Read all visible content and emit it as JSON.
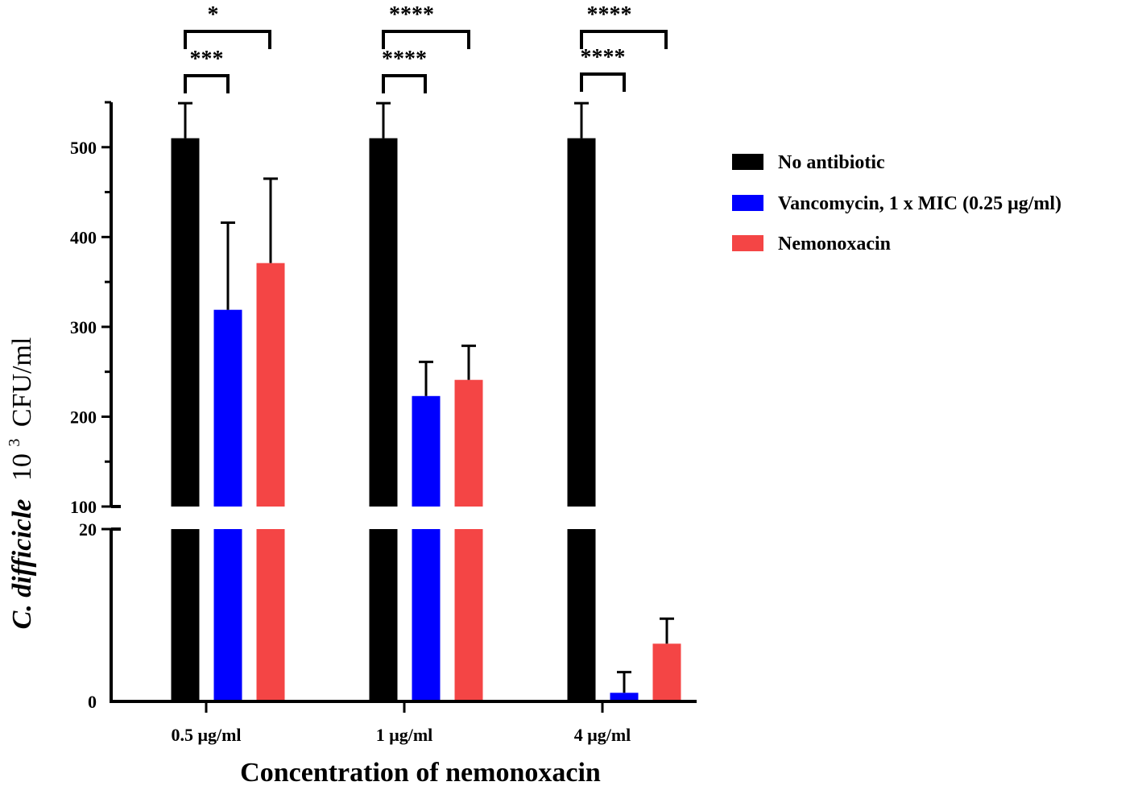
{
  "chart_data": {
    "type": "bar",
    "xlabel": "Concentration of nemonoxacin",
    "ylabel": {
      "species": "C. difficicle",
      "base": "10",
      "exponent": "3",
      "unit": "CFU/ml"
    },
    "categories": [
      "0.5 μg/ml",
      "1 μg/ml",
      "4 μg/ml"
    ],
    "series": [
      {
        "name": "No antibiotic",
        "color": "#000000",
        "values": [
          510,
          510,
          510
        ],
        "errors": [
          39,
          39,
          39
        ]
      },
      {
        "name": "Vancomycin, 1 x MIC (0.25 μg/ml)",
        "color": "#0000ff",
        "values": [
          319,
          223,
          1
        ],
        "errors": [
          97,
          38,
          2.4
        ]
      },
      {
        "name": "Nemonoxacin",
        "color": "#f44545",
        "values": [
          371,
          241,
          6.7
        ],
        "errors": [
          94,
          38,
          2.9
        ]
      }
    ],
    "y_axis_break": {
      "lower_range": [
        0,
        20
      ],
      "upper_range": [
        100,
        550
      ]
    },
    "yticks": [
      {
        "label": "0",
        "value": 0
      },
      {
        "label": "20",
        "value": 20
      },
      {
        "label": "100",
        "value": 100
      },
      {
        "label": "200",
        "value": 200
      },
      {
        "label": "300",
        "value": 300
      },
      {
        "label": "400",
        "value": 400
      },
      {
        "label": "500",
        "value": 500
      }
    ],
    "significance": [
      {
        "category": "0.5 μg/ml",
        "comparison": "No antibiotic vs Vancomycin",
        "label": "***"
      },
      {
        "category": "0.5 μg/ml",
        "comparison": "No antibiotic vs Nemonoxacin",
        "label": "*"
      },
      {
        "category": "1 μg/ml",
        "comparison": "No antibiotic vs Vancomycin",
        "label": "****"
      },
      {
        "category": "1 μg/ml",
        "comparison": "No antibiotic vs Nemonoxacin",
        "label": "****"
      },
      {
        "category": "4 μg/ml",
        "comparison": "No antibiotic vs Vancomycin",
        "label": "****"
      },
      {
        "category": "4 μg/ml",
        "comparison": "No antibiotic vs Nemonoxacin",
        "label": "****"
      }
    ],
    "legend_position": "right"
  }
}
